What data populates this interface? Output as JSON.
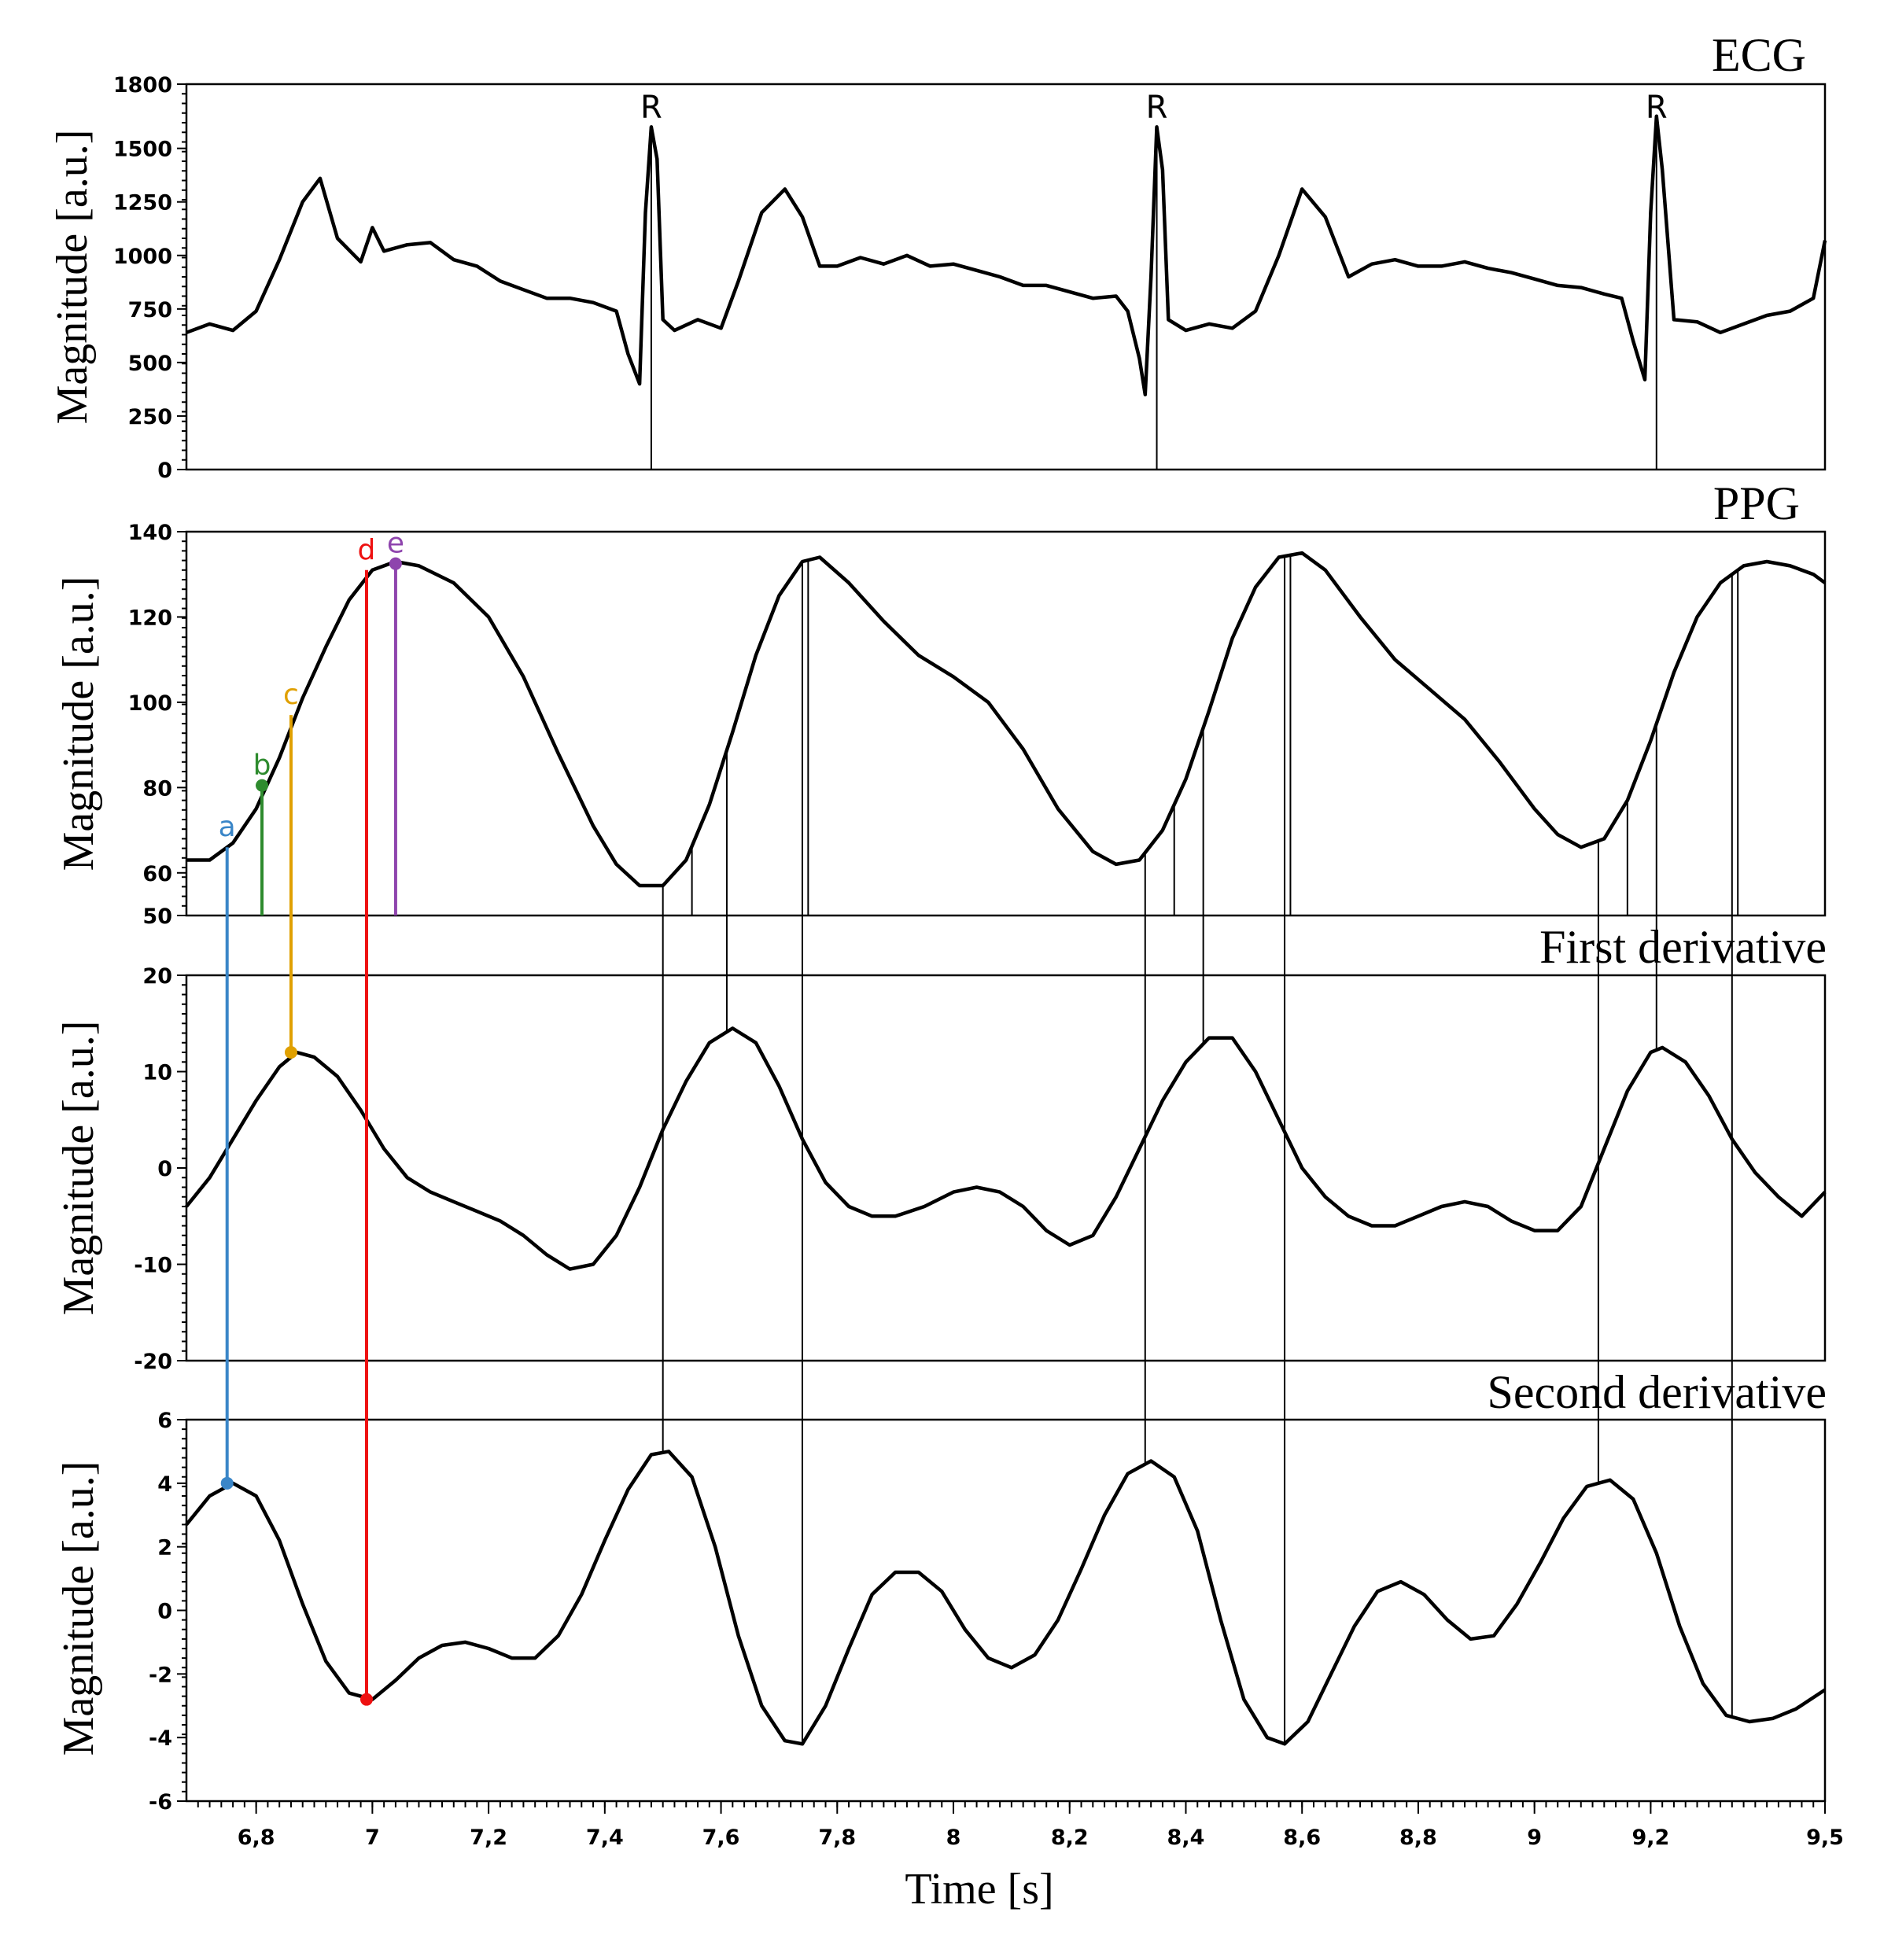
{
  "chart_data": {
    "type": "line",
    "xlabel": "Time [s]",
    "xlim": [
      6.68,
      9.5
    ],
    "x_ticks": [
      "6,8",
      "7",
      "7,2",
      "7,4",
      "7,6",
      "7,8",
      "8",
      "8,2",
      "8,4",
      "8,6",
      "8,8",
      "9",
      "9,2",
      "9,5"
    ],
    "x_tick_values": [
      6.8,
      7.0,
      7.2,
      7.4,
      7.6,
      7.8,
      8.0,
      8.2,
      8.4,
      8.6,
      8.8,
      9.0,
      9.2,
      9.5
    ],
    "colors": {
      "trace": "#000000",
      "a": "#3a86c8",
      "b": "#2e8b2e",
      "c": "#e0a000",
      "d": "#ee1111",
      "e": "#8e44ad"
    },
    "panels": [
      {
        "id": "ecg",
        "title": "ECG",
        "ylabel": "Magnitude [a.u.]",
        "ylim": [
          0,
          1800
        ],
        "y_ticks": [
          "0",
          "250",
          "500",
          "750",
          "1000",
          "1250",
          "1500",
          "1800"
        ],
        "y_tick_values": [
          0,
          250,
          500,
          750,
          1000,
          1250,
          1500,
          1800
        ],
        "r_label": "R",
        "r_peaks": [
          7.48,
          8.35,
          9.21
        ],
        "series": {
          "x": [
            6.68,
            6.72,
            6.76,
            6.8,
            6.84,
            6.88,
            6.91,
            6.94,
            6.98,
            7.0,
            7.02,
            7.06,
            7.1,
            7.14,
            7.18,
            7.22,
            7.26,
            7.3,
            7.34,
            7.38,
            7.42,
            7.44,
            7.46,
            7.47,
            7.48,
            7.49,
            7.5,
            7.52,
            7.56,
            7.6,
            7.63,
            7.67,
            7.71,
            7.74,
            7.77,
            7.8,
            7.84,
            7.88,
            7.92,
            7.96,
            8.0,
            8.04,
            8.08,
            8.12,
            8.16,
            8.2,
            8.24,
            8.28,
            8.3,
            8.32,
            8.33,
            8.34,
            8.35,
            8.36,
            8.37,
            8.4,
            8.44,
            8.48,
            8.52,
            8.56,
            8.6,
            8.64,
            8.68,
            8.72,
            8.76,
            8.8,
            8.84,
            8.88,
            8.92,
            8.96,
            9.0,
            9.04,
            9.08,
            9.12,
            9.15,
            9.17,
            9.19,
            9.2,
            9.21,
            9.22,
            9.24,
            9.28,
            9.32,
            9.36,
            9.4,
            9.44,
            9.48,
            9.5
          ],
          "y": [
            640,
            680,
            650,
            740,
            980,
            1250,
            1360,
            1080,
            970,
            1130,
            1020,
            1050,
            1060,
            980,
            950,
            880,
            840,
            800,
            800,
            780,
            740,
            540,
            400,
            1200,
            1600,
            1450,
            700,
            650,
            700,
            660,
            880,
            1200,
            1310,
            1180,
            950,
            950,
            990,
            960,
            1000,
            950,
            960,
            930,
            900,
            860,
            860,
            830,
            800,
            810,
            740,
            520,
            350,
            900,
            1600,
            1400,
            700,
            650,
            680,
            660,
            740,
            1000,
            1310,
            1180,
            900,
            960,
            980,
            950,
            950,
            970,
            940,
            920,
            890,
            860,
            850,
            820,
            800,
            600,
            420,
            1200,
            1650,
            1400,
            700,
            690,
            640,
            680,
            720,
            740,
            800,
            1070
          ]
        }
      },
      {
        "id": "ppg",
        "title": "PPG",
        "ylabel": "Magnitude [a.u.]",
        "ylim": [
          50,
          140
        ],
        "y_ticks": [
          "50",
          "60",
          "80",
          "100",
          "120",
          "140"
        ],
        "y_tick_values": [
          50,
          60,
          80,
          100,
          120,
          140
        ],
        "series": {
          "x": [
            6.68,
            6.72,
            6.76,
            6.8,
            6.84,
            6.88,
            6.92,
            6.96,
            7.0,
            7.04,
            7.08,
            7.14,
            7.2,
            7.26,
            7.32,
            7.38,
            7.42,
            7.46,
            7.5,
            7.54,
            7.58,
            7.62,
            7.66,
            7.7,
            7.74,
            7.77,
            7.82,
            7.88,
            7.94,
            8.0,
            8.06,
            8.12,
            8.18,
            8.24,
            8.28,
            8.32,
            8.36,
            8.4,
            8.44,
            8.48,
            8.52,
            8.56,
            8.6,
            8.64,
            8.7,
            8.76,
            8.82,
            8.88,
            8.94,
            9.0,
            9.04,
            9.08,
            9.12,
            9.16,
            9.2,
            9.24,
            9.28,
            9.32,
            9.36,
            9.4,
            9.44,
            9.48,
            9.5
          ],
          "y": [
            63,
            63,
            67,
            75,
            87,
            101,
            113,
            124,
            131,
            133,
            132,
            128,
            120,
            106,
            88,
            71,
            62,
            57,
            57,
            63,
            76,
            93,
            111,
            125,
            133,
            134,
            128,
            119,
            111,
            106,
            100,
            89,
            75,
            65,
            62,
            63,
            70,
            82,
            98,
            115,
            127,
            134,
            135,
            131,
            120,
            110,
            103,
            96,
            86,
            75,
            69,
            66,
            68,
            77,
            91,
            107,
            120,
            128,
            132,
            133,
            132,
            130,
            128
          ]
        }
      },
      {
        "id": "d1",
        "title": "First derivative",
        "ylabel": "Magnitude [a.u.]",
        "ylim": [
          -20,
          20
        ],
        "y_ticks": [
          "-20",
          "-10",
          "0",
          "10",
          "20"
        ],
        "y_tick_values": [
          -20,
          -10,
          0,
          10,
          20
        ],
        "series": {
          "x": [
            6.68,
            6.72,
            6.76,
            6.8,
            6.84,
            6.87,
            6.9,
            6.94,
            6.98,
            7.02,
            7.06,
            7.1,
            7.14,
            7.18,
            7.22,
            7.26,
            7.3,
            7.34,
            7.38,
            7.42,
            7.46,
            7.5,
            7.54,
            7.58,
            7.62,
            7.66,
            7.7,
            7.74,
            7.78,
            7.82,
            7.86,
            7.9,
            7.95,
            8.0,
            8.04,
            8.08,
            8.12,
            8.16,
            8.2,
            8.24,
            8.28,
            8.32,
            8.36,
            8.4,
            8.44,
            8.48,
            8.52,
            8.56,
            8.6,
            8.64,
            8.68,
            8.72,
            8.76,
            8.8,
            8.84,
            8.88,
            8.92,
            8.96,
            9.0,
            9.04,
            9.08,
            9.12,
            9.16,
            9.2,
            9.22,
            9.26,
            9.3,
            9.34,
            9.38,
            9.42,
            9.46,
            9.5
          ],
          "y": [
            -4,
            -1,
            3,
            7,
            10.5,
            12,
            11.5,
            9.5,
            6,
            2,
            -1,
            -2.5,
            -3.5,
            -4.5,
            -5.5,
            -7,
            -9,
            -10.5,
            -10,
            -7,
            -2,
            4,
            9,
            13,
            14.5,
            13,
            8.5,
            3,
            -1.5,
            -4,
            -5,
            -5,
            -4,
            -2.5,
            -2,
            -2.5,
            -4,
            -6.5,
            -8,
            -7,
            -3,
            2,
            7,
            11,
            13.5,
            13.5,
            10,
            5,
            0,
            -3,
            -5,
            -6,
            -6,
            -5,
            -4,
            -3.5,
            -4,
            -5.5,
            -6.5,
            -6.5,
            -4,
            2,
            8,
            12,
            12.5,
            11,
            7.5,
            3,
            -0.5,
            -3,
            -5,
            -2.5
          ]
        }
      },
      {
        "id": "d2",
        "title": "Second derivative",
        "ylabel": "Magnitude [a.u.]",
        "ylim": [
          -6,
          6
        ],
        "y_ticks": [
          "-6",
          "-4",
          "-2",
          "0",
          "2",
          "4",
          "6"
        ],
        "y_tick_values": [
          -6,
          -4,
          -2,
          0,
          2,
          4,
          6
        ],
        "series": {
          "x": [
            6.68,
            6.72,
            6.76,
            6.8,
            6.84,
            6.88,
            6.92,
            6.96,
            7.0,
            7.04,
            7.08,
            7.12,
            7.16,
            7.2,
            7.24,
            7.28,
            7.32,
            7.36,
            7.4,
            7.44,
            7.48,
            7.51,
            7.55,
            7.59,
            7.63,
            7.67,
            7.71,
            7.74,
            7.78,
            7.82,
            7.86,
            7.9,
            7.94,
            7.98,
            8.02,
            8.06,
            8.1,
            8.14,
            8.18,
            8.22,
            8.26,
            8.3,
            8.34,
            8.38,
            8.42,
            8.46,
            8.5,
            8.54,
            8.57,
            8.61,
            8.65,
            8.69,
            8.73,
            8.77,
            8.81,
            8.85,
            8.89,
            8.93,
            8.97,
            9.01,
            9.05,
            9.09,
            9.13,
            9.17,
            9.21,
            9.25,
            9.29,
            9.33,
            9.37,
            9.41,
            9.45,
            9.5
          ],
          "y": [
            2.7,
            3.6,
            4.0,
            3.6,
            2.2,
            0.2,
            -1.6,
            -2.6,
            -2.8,
            -2.2,
            -1.5,
            -1.1,
            -1.0,
            -1.2,
            -1.5,
            -1.5,
            -0.8,
            0.5,
            2.2,
            3.8,
            4.9,
            5.0,
            4.2,
            2.0,
            -0.8,
            -3.0,
            -4.1,
            -4.2,
            -3.0,
            -1.2,
            0.5,
            1.2,
            1.2,
            0.6,
            -0.6,
            -1.5,
            -1.8,
            -1.4,
            -0.3,
            1.3,
            3.0,
            4.3,
            4.7,
            4.2,
            2.5,
            -0.3,
            -2.8,
            -4.0,
            -4.2,
            -3.5,
            -2.0,
            -0.5,
            0.6,
            0.9,
            0.5,
            -0.3,
            -0.9,
            -0.8,
            0.2,
            1.5,
            2.9,
            3.9,
            4.1,
            3.5,
            1.8,
            -0.5,
            -2.3,
            -3.3,
            -3.5,
            -3.4,
            -3.1,
            -2.5
          ]
        }
      }
    ],
    "fiducial_points": [
      {
        "label": "a",
        "time": 6.75,
        "ppg": 66,
        "anchor_panel": "d2",
        "anchor_value": 4.0,
        "color": "#3a86c8"
      },
      {
        "label": "b",
        "time": 6.81,
        "ppg": 80.5,
        "anchor_panel": "ppg",
        "anchor_value": 80.5,
        "color": "#2e8b2e"
      },
      {
        "label": "c",
        "time": 6.86,
        "ppg": 97,
        "anchor_panel": "d1",
        "anchor_value": 12,
        "color": "#e0a000"
      },
      {
        "label": "d",
        "time": 6.99,
        "ppg": 131,
        "anchor_panel": "d2",
        "anchor_value": -2.8,
        "color": "#ee1111"
      },
      {
        "label": "e",
        "time": 7.04,
        "ppg": 132.5,
        "anchor_panel": "ppg",
        "anchor_value": 132.5,
        "color": "#8e44ad"
      }
    ],
    "marker_lines": {
      "to_d2": [
        7.5,
        7.74,
        8.33,
        8.57,
        9.11,
        9.34
      ],
      "to_d1": [
        7.61,
        8.43,
        9.21
      ],
      "ppg_only": [
        7.55,
        7.75,
        8.38,
        8.58,
        9.16,
        9.35
      ]
    }
  }
}
